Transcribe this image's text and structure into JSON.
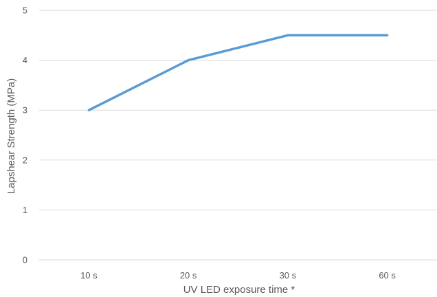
{
  "chart_data": {
    "type": "line",
    "categories": [
      "10 s",
      "20 s",
      "30 s",
      "60 s"
    ],
    "series": [
      {
        "values": [
          3,
          4,
          4.5,
          4.5
        ]
      }
    ],
    "xlabel": "UV LED exposure time *",
    "ylabel": "Lapshear Strength (MPa)",
    "ylim": [
      0,
      5
    ],
    "yticks": [
      0,
      1,
      2,
      3,
      4,
      5
    ],
    "grid": true,
    "legend": "none",
    "colors": {
      "series": "#5b9bd5",
      "grid": "#d9d9d9",
      "text": "#595959"
    }
  }
}
